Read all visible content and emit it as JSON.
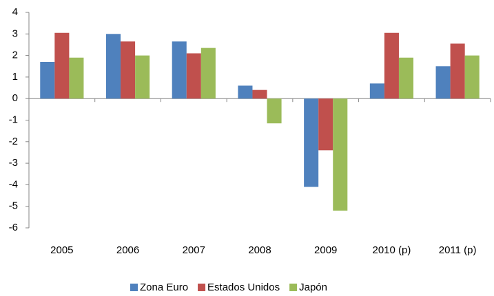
{
  "chart_data": {
    "type": "bar",
    "categories": [
      "2005",
      "2006",
      "2007",
      "2008",
      "2009",
      "2010 (p)",
      "2011 (p)"
    ],
    "series": [
      {
        "name": "Zona Euro",
        "color": "#4f81bd",
        "values": [
          1.7,
          3.0,
          2.65,
          0.6,
          -4.1,
          0.7,
          1.5
        ]
      },
      {
        "name": "Estados Unidos",
        "color": "#c0504d",
        "values": [
          3.05,
          2.65,
          2.1,
          0.4,
          -2.4,
          3.05,
          2.55
        ]
      },
      {
        "name": "Japón",
        "color": "#9bbb59",
        "values": [
          1.9,
          2.0,
          2.35,
          -1.15,
          -5.2,
          1.9,
          2.0
        ]
      }
    ],
    "ylim": [
      -6,
      4
    ],
    "yticks": [
      -6,
      -5,
      -4,
      -3,
      -2,
      -1,
      0,
      1,
      2,
      3,
      4
    ],
    "grid": false,
    "legend": "bottom"
  }
}
